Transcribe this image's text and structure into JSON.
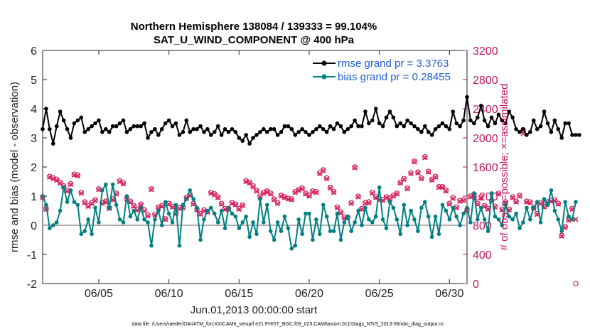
{
  "chart_data": {
    "type": "line",
    "title": "Northern Hemisphere 138084 / 139333 = 99.104%",
    "subtitle": "SAT_U_WIND_COMPONENT @ 400 hPa",
    "xlabel": "Jun.01,2013 00:00:00 start",
    "ylabel": "rmse and bias (model - observation)",
    "ylabel_right": "# of obs: o=possible; ×=assimilated",
    "footer": "data file: /Users/raeder/DAI/ATM_forcXX/CAM6_setup/f.e21.FHIST_BGC.f09_025.CAM6assim.011/Diags_NTrS_2013-06/obs_diag_output.nc",
    "xlim": [
      1,
      31.25
    ],
    "ylim": [
      -2,
      6
    ],
    "ylim_right": [
      0,
      3200
    ],
    "x_ticks": [
      5,
      10,
      15,
      20,
      25,
      30
    ],
    "x_tick_labels": [
      "06/05",
      "06/10",
      "06/15",
      "06/20",
      "06/25",
      "06/30"
    ],
    "y_ticks": [
      -2,
      -1,
      0,
      1,
      2,
      3,
      4,
      5,
      6
    ],
    "y_tick_labels": [
      "-2",
      "-1",
      "0",
      "1",
      "2",
      "3",
      "4",
      "5",
      "6"
    ],
    "y_right_ticks": [
      0,
      400,
      800,
      1200,
      1600,
      2000,
      2400,
      2800,
      3200
    ],
    "y_right_tick_labels": [
      "0",
      "400",
      "800",
      "1200",
      "1600",
      "2000",
      "2400",
      "2800",
      "3200"
    ],
    "x_start": 1.0,
    "x_step": 0.25,
    "legend": {
      "location": "top-right",
      "entries": [
        "rmse grand pr = 3.3763",
        "bias grand pr = 0.28455"
      ]
    },
    "series": [
      {
        "name": "rmse grand pr = 3.3763",
        "color": "#000000",
        "values": [
          3.3,
          4.0,
          3.3,
          2.8,
          3.4,
          3.9,
          3.6,
          3.3,
          3.0,
          3.5,
          3.6,
          3.7,
          3.2,
          3.3,
          3.4,
          3.5,
          3.6,
          3.2,
          3.3,
          3.2,
          3.4,
          3.4,
          3.5,
          3.6,
          3.2,
          3.3,
          3.4,
          3.4,
          3.4,
          3.5,
          3.0,
          3.2,
          3.3,
          3.1,
          3.3,
          3.5,
          3.6,
          3.4,
          3.5,
          3.1,
          3.2,
          3.6,
          3.2,
          3.3,
          3.3,
          3.4,
          3.2,
          3.3,
          3.1,
          3.2,
          3.4,
          3.1,
          3.3,
          3.2,
          3.3,
          3.2,
          3.0,
          2.9,
          3.1,
          2.8,
          3.0,
          3.1,
          3.2,
          3.3,
          3.2,
          3.3,
          3.3,
          3.1,
          3.2,
          3.4,
          3.4,
          3.3,
          3.1,
          3.2,
          3.3,
          3.2,
          3.1,
          3.2,
          3.3,
          3.4,
          3.3,
          3.2,
          3.4,
          3.3,
          3.5,
          3.4,
          3.2,
          3.3,
          3.4,
          3.6,
          3.4,
          3.4,
          3.9,
          3.5,
          3.6,
          4.0,
          3.5,
          3.4,
          3.7,
          3.9,
          3.7,
          3.4,
          3.5,
          3.4,
          3.6,
          3.5,
          3.4,
          3.3,
          3.2,
          3.4,
          3.2,
          3.1,
          3.3,
          3.4,
          3.5,
          3.4,
          3.3,
          3.9,
          3.5,
          3.4,
          3.6,
          4.4,
          3.6,
          3.5,
          3.7,
          4.1,
          3.6,
          3.4,
          3.7,
          3.5,
          3.8,
          3.6,
          3.5,
          3.9,
          3.7,
          3.3,
          3.2,
          3.3,
          3.1,
          3.2,
          3.6,
          3.3,
          3.4,
          3.9,
          3.5,
          3.2,
          3.6,
          3.3,
          3.0,
          3.5,
          3.5,
          3.1,
          3.1,
          3.1
        ],
        "marker": "filled-circle"
      },
      {
        "name": "bias grand pr = 0.28455",
        "color": "#008080",
        "values": [
          1.0,
          0.7,
          -0.1,
          0.0,
          0.1,
          0.5,
          1.3,
          0.8,
          1.2,
          0.8,
          0.7,
          -0.3,
          -0.2,
          0.2,
          -0.3,
          0.6,
          0.1,
          1.2,
          1.4,
          0.6,
          1.4,
          0.7,
          0.2,
          0.1,
          1.0,
          0.3,
          0.5,
          0.2,
          0.6,
          0.2,
          0.1,
          -0.7,
          0.2,
          0.5,
          0.0,
          0.8,
          0.4,
          0.1,
          0.7,
          -0.7,
          0.7,
          0.9,
          1.2,
          0.9,
          0.6,
          -0.5,
          0.2,
          0.5,
          0.6,
          0.4,
          0.1,
          0.5,
          -0.1,
          0.6,
          0.4,
          0.3,
          -0.1,
          0.1,
          0.3,
          -0.4,
          0.1,
          -0.3,
          0.9,
          0.1,
          0.7,
          -0.2,
          -0.5,
          0.1,
          -0.2,
          0.3,
          -0.1,
          -0.8,
          -0.7,
          0.2,
          -0.3,
          0.4,
          0.4,
          -0.5,
          0.2,
          -0.3,
          0.7,
          0.3,
          -0.2,
          -0.2,
          0.4,
          -0.5,
          0.1,
          0.3,
          -0.2,
          0.1,
          0.5,
          0.0,
          0.6,
          0.2,
          0.1,
          0.3,
          1.3,
          0.2,
          -0.1,
          0.8,
          0.6,
          0.2,
          -0.3,
          0.7,
          0.0,
          0.5,
          0.2,
          -0.2,
          0.6,
          0.8,
          0.3,
          -0.4,
          0.3,
          -0.3,
          0.7,
          0.5,
          0.2,
          0.6,
          0.3,
          0.0,
          0.4,
          0.6,
          0.1,
          1.1,
          0.2,
          0.6,
          0.2,
          -0.2,
          1.1,
          0.3,
          0.2,
          0.0,
          0.7,
          0.3,
          0.2,
          0.4,
          -0.1,
          0.1,
          0.6,
          0.2,
          0.6,
          0.8,
          0.1,
          0.9,
          0.7,
          1.2,
          0.5,
          0.2,
          -0.2,
          0.8,
          0.3,
          0.2,
          0.8
        ],
        "marker": "filled-circle"
      }
    ],
    "obs_counts": {
      "name": "# of obs",
      "color": "#d6215f",
      "assimilated": [
        1180,
        1020,
        1460,
        1440,
        1420,
        1380,
        1330,
        1270,
        1360,
        1490,
        1480,
        1240,
        1110,
        1060,
        1100,
        1140,
        1290,
        1100,
        1120,
        1030,
        1150,
        1230,
        1400,
        1370,
        1160,
        1120,
        1060,
        1010,
        1080,
        1000,
        930,
        1290,
        940,
        1040,
        1060,
        880,
        1090,
        1050,
        960,
        1030,
        1040,
        1170,
        1210,
        1090,
        1010,
        950,
        1000,
        980,
        1240,
        1220,
        1180,
        1090,
        1020,
        1020,
        1100,
        1080,
        1020,
        1070,
        1400,
        1380,
        1330,
        1270,
        1190,
        1240,
        1260,
        1230,
        1150,
        1100,
        1200,
        1180,
        1160,
        1150,
        1250,
        1280,
        1300,
        1230,
        1200,
        1260,
        1250,
        1510,
        1550,
        1440,
        1310,
        1250,
        1040,
        970,
        900,
        900,
        1100,
        1590,
        1190,
        1020,
        1100,
        1110,
        1240,
        1180,
        1150,
        1140,
        1180,
        1160,
        1200,
        1230,
        1380,
        1430,
        1300,
        1510,
        1670,
        1520,
        1440,
        1730,
        1530,
        1420,
        1460,
        1320,
        1320,
        1270,
        1090,
        1170,
        1040,
        1130,
        1140,
        1000,
        1190,
        1210,
        1090,
        1180,
        1060,
        1020,
        1130,
        1050,
        1230,
        1010,
        1110,
        1010,
        1180,
        1120,
        1200,
        2060,
        1120,
        1110,
        1030,
        950,
        1100,
        1050,
        1110,
        1130,
        1140,
        1090,
        650,
        770,
        870,
        1020,
        880
      ],
      "possible": [
        1190,
        1030,
        1470,
        1450,
        1430,
        1390,
        1340,
        1280,
        1370,
        1500,
        1490,
        1250,
        1120,
        1070,
        1110,
        1150,
        1300,
        1110,
        1130,
        1040,
        1160,
        1240,
        1410,
        1380,
        1170,
        1130,
        1070,
        1020,
        1090,
        1010,
        940,
        1300,
        950,
        1050,
        1070,
        890,
        1100,
        1060,
        970,
        1040,
        1050,
        1180,
        1220,
        1100,
        1020,
        960,
        1010,
        990,
        1250,
        1230,
        1190,
        1100,
        1030,
        1030,
        1110,
        1090,
        1030,
        1080,
        1410,
        1390,
        1340,
        1280,
        1200,
        1250,
        1270,
        1240,
        1160,
        1110,
        1210,
        1190,
        1170,
        1160,
        1260,
        1290,
        1310,
        1240,
        1210,
        1270,
        1260,
        1520,
        1560,
        1450,
        1320,
        1260,
        1050,
        980,
        910,
        910,
        1110,
        1600,
        1200,
        1030,
        1110,
        1120,
        1250,
        1190,
        1160,
        1150,
        1190,
        1170,
        1210,
        1240,
        1390,
        1440,
        1310,
        1520,
        1680,
        1530,
        1450,
        1740,
        1540,
        1430,
        1470,
        1330,
        1330,
        1280,
        1100,
        1180,
        1050,
        1140,
        1150,
        1010,
        1200,
        1220,
        1100,
        1190,
        1070,
        1030,
        1140,
        1060,
        1240,
        1020,
        1120,
        1020,
        1190,
        1130,
        1210,
        2110,
        1130,
        1120,
        1040,
        960,
        1110,
        1060,
        1120,
        1140,
        1150,
        1100,
        660,
        780,
        880,
        1030,
        0
      ]
    }
  }
}
